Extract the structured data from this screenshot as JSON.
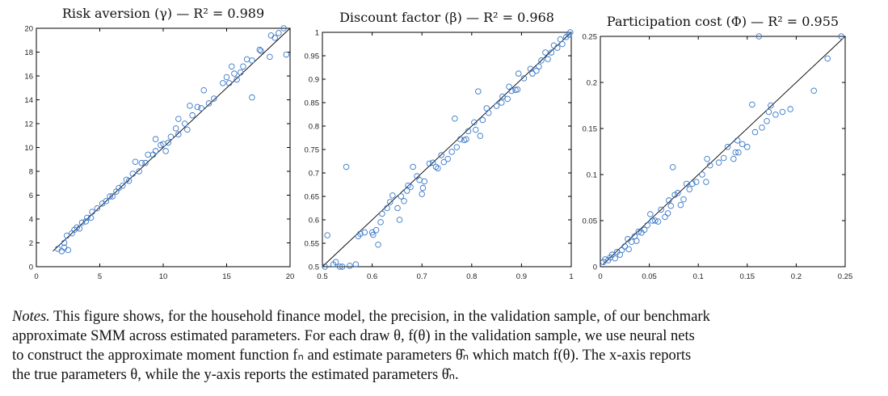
{
  "colors": {
    "marker": "#3a78c8",
    "fit_line": "#000000",
    "frame": "#000000"
  },
  "chart_data": [
    {
      "type": "scatter",
      "title": "Risk aversion (γ) — R² = 0.989",
      "xlim": [
        0,
        20
      ],
      "ylim": [
        0,
        20
      ],
      "xticks": [
        0,
        5,
        10,
        15,
        20
      ],
      "yticks": [
        0,
        2,
        4,
        6,
        8,
        10,
        12,
        14,
        16,
        18,
        20
      ],
      "fit_line": [
        [
          1.3,
          1.3
        ],
        [
          20,
          20
        ]
      ],
      "points": [
        [
          1.7,
          1.5
        ],
        [
          2.0,
          1.3
        ],
        [
          2.2,
          1.6
        ],
        [
          2.2,
          2.0
        ],
        [
          2.5,
          1.4
        ],
        [
          2.4,
          2.6
        ],
        [
          2.8,
          2.8
        ],
        [
          3.0,
          3.1
        ],
        [
          3.2,
          3.3
        ],
        [
          3.4,
          3.2
        ],
        [
          3.6,
          3.7
        ],
        [
          3.9,
          3.8
        ],
        [
          4.0,
          4.1
        ],
        [
          4.3,
          4.1
        ],
        [
          4.4,
          4.6
        ],
        [
          4.8,
          4.9
        ],
        [
          5.2,
          5.3
        ],
        [
          5.5,
          5.5
        ],
        [
          5.8,
          5.9
        ],
        [
          6.0,
          5.9
        ],
        [
          6.3,
          6.3
        ],
        [
          6.5,
          6.6
        ],
        [
          6.8,
          6.8
        ],
        [
          7.1,
          7.3
        ],
        [
          7.3,
          7.2
        ],
        [
          7.6,
          7.8
        ],
        [
          7.8,
          8.8
        ],
        [
          8.1,
          8.0
        ],
        [
          8.3,
          8.7
        ],
        [
          8.6,
          8.7
        ],
        [
          8.8,
          9.4
        ],
        [
          9.2,
          9.4
        ],
        [
          9.4,
          10.7
        ],
        [
          9.4,
          9.7
        ],
        [
          9.8,
          10.2
        ],
        [
          10.0,
          10.3
        ],
        [
          10.2,
          9.7
        ],
        [
          10.4,
          10.4
        ],
        [
          10.6,
          10.9
        ],
        [
          11.0,
          11.6
        ],
        [
          11.2,
          12.4
        ],
        [
          11.2,
          11.1
        ],
        [
          11.7,
          12.0
        ],
        [
          11.9,
          11.5
        ],
        [
          12.1,
          13.5
        ],
        [
          12.3,
          12.7
        ],
        [
          12.7,
          13.4
        ],
        [
          13.0,
          13.3
        ],
        [
          13.2,
          14.8
        ],
        [
          13.6,
          13.7
        ],
        [
          14.0,
          14.1
        ],
        [
          14.7,
          15.4
        ],
        [
          15.0,
          15.9
        ],
        [
          15.2,
          15.4
        ],
        [
          15.4,
          16.8
        ],
        [
          15.6,
          16.2
        ],
        [
          15.8,
          15.7
        ],
        [
          16.1,
          16.3
        ],
        [
          16.3,
          16.8
        ],
        [
          16.6,
          17.4
        ],
        [
          17.0,
          14.2
        ],
        [
          17.0,
          17.3
        ],
        [
          17.6,
          18.2
        ],
        [
          17.7,
          18.1
        ],
        [
          18.4,
          17.6
        ],
        [
          18.5,
          19.4
        ],
        [
          18.8,
          19.2
        ],
        [
          19.1,
          19.6
        ],
        [
          19.5,
          20.0
        ],
        [
          19.7,
          17.8
        ]
      ]
    },
    {
      "type": "scatter",
      "title": "Discount factor (β) — R² = 0.968",
      "xlim": [
        0.5,
        1
      ],
      "ylim": [
        0.5,
        1
      ],
      "xticks": [
        0.5,
        0.6,
        0.7,
        0.8,
        0.9,
        1
      ],
      "yticks": [
        0.5,
        0.55,
        0.6,
        0.65,
        0.7,
        0.75,
        0.8,
        0.85,
        0.9,
        0.95,
        1
      ],
      "fit_line": [
        [
          0.5,
          0.5
        ],
        [
          1,
          1
        ]
      ],
      "points": [
        [
          0.505,
          0.5
        ],
        [
          0.51,
          0.567
        ],
        [
          0.522,
          0.505
        ],
        [
          0.527,
          0.51
        ],
        [
          0.535,
          0.5
        ],
        [
          0.54,
          0.5
        ],
        [
          0.548,
          0.713
        ],
        [
          0.555,
          0.502
        ],
        [
          0.567,
          0.505
        ],
        [
          0.572,
          0.565
        ],
        [
          0.576,
          0.57
        ],
        [
          0.585,
          0.573
        ],
        [
          0.6,
          0.573
        ],
        [
          0.602,
          0.568
        ],
        [
          0.608,
          0.578
        ],
        [
          0.612,
          0.547
        ],
        [
          0.617,
          0.595
        ],
        [
          0.62,
          0.613
        ],
        [
          0.63,
          0.625
        ],
        [
          0.636,
          0.638
        ],
        [
          0.641,
          0.652
        ],
        [
          0.651,
          0.625
        ],
        [
          0.655,
          0.6
        ],
        [
          0.658,
          0.65
        ],
        [
          0.664,
          0.64
        ],
        [
          0.67,
          0.662
        ],
        [
          0.672,
          0.673
        ],
        [
          0.677,
          0.67
        ],
        [
          0.682,
          0.713
        ],
        [
          0.69,
          0.693
        ],
        [
          0.695,
          0.685
        ],
        [
          0.7,
          0.655
        ],
        [
          0.702,
          0.668
        ],
        [
          0.705,
          0.682
        ],
        [
          0.715,
          0.72
        ],
        [
          0.722,
          0.722
        ],
        [
          0.728,
          0.713
        ],
        [
          0.732,
          0.71
        ],
        [
          0.739,
          0.738
        ],
        [
          0.744,
          0.723
        ],
        [
          0.752,
          0.73
        ],
        [
          0.76,
          0.745
        ],
        [
          0.766,
          0.816
        ],
        [
          0.77,
          0.755
        ],
        [
          0.777,
          0.772
        ],
        [
          0.785,
          0.77
        ],
        [
          0.789,
          0.772
        ],
        [
          0.793,
          0.789
        ],
        [
          0.805,
          0.808
        ],
        [
          0.808,
          0.792
        ],
        [
          0.813,
          0.874
        ],
        [
          0.817,
          0.779
        ],
        [
          0.822,
          0.813
        ],
        [
          0.83,
          0.838
        ],
        [
          0.834,
          0.828
        ],
        [
          0.85,
          0.843
        ],
        [
          0.86,
          0.85
        ],
        [
          0.862,
          0.863
        ],
        [
          0.872,
          0.858
        ],
        [
          0.875,
          0.884
        ],
        [
          0.88,
          0.875
        ],
        [
          0.888,
          0.877
        ],
        [
          0.892,
          0.878
        ],
        [
          0.894,
          0.912
        ],
        [
          0.905,
          0.902
        ],
        [
          0.918,
          0.922
        ],
        [
          0.922,
          0.912
        ],
        [
          0.93,
          0.918
        ],
        [
          0.935,
          0.927
        ],
        [
          0.94,
          0.94
        ],
        [
          0.948,
          0.957
        ],
        [
          0.953,
          0.943
        ],
        [
          0.96,
          0.957
        ],
        [
          0.965,
          0.972
        ],
        [
          0.972,
          0.967
        ],
        [
          0.978,
          0.985
        ],
        [
          0.982,
          0.975
        ],
        [
          0.99,
          0.99
        ],
        [
          0.995,
          0.995
        ],
        [
          0.998,
          1.0
        ]
      ]
    },
    {
      "type": "scatter",
      "title": "Participation cost (Φ) — R² = 0.955",
      "xlim": [
        0,
        0.25
      ],
      "ylim": [
        0,
        0.25
      ],
      "xticks": [
        0,
        0.05,
        0.1,
        0.15,
        0.2,
        0.25
      ],
      "yticks": [
        0,
        0.05,
        0.1,
        0.15,
        0.2,
        0.25
      ],
      "fit_line": [
        [
          0.003,
          0.003
        ],
        [
          0.25,
          0.25
        ]
      ],
      "points": [
        [
          0.003,
          0.005
        ],
        [
          0.005,
          0.008
        ],
        [
          0.008,
          0.007
        ],
        [
          0.01,
          0.01
        ],
        [
          0.012,
          0.013
        ],
        [
          0.015,
          0.009
        ],
        [
          0.017,
          0.016
        ],
        [
          0.02,
          0.013
        ],
        [
          0.022,
          0.018
        ],
        [
          0.025,
          0.022
        ],
        [
          0.028,
          0.03
        ],
        [
          0.029,
          0.019
        ],
        [
          0.032,
          0.027
        ],
        [
          0.035,
          0.033
        ],
        [
          0.037,
          0.028
        ],
        [
          0.039,
          0.038
        ],
        [
          0.042,
          0.037
        ],
        [
          0.045,
          0.04
        ],
        [
          0.048,
          0.045
        ],
        [
          0.051,
          0.057
        ],
        [
          0.053,
          0.05
        ],
        [
          0.056,
          0.05
        ],
        [
          0.059,
          0.049
        ],
        [
          0.062,
          0.062
        ],
        [
          0.066,
          0.054
        ],
        [
          0.069,
          0.058
        ],
        [
          0.07,
          0.072
        ],
        [
          0.072,
          0.066
        ],
        [
          0.074,
          0.108
        ],
        [
          0.076,
          0.078
        ],
        [
          0.079,
          0.08
        ],
        [
          0.082,
          0.067
        ],
        [
          0.085,
          0.073
        ],
        [
          0.088,
          0.09
        ],
        [
          0.091,
          0.084
        ],
        [
          0.094,
          0.09
        ],
        [
          0.098,
          0.092
        ],
        [
          0.104,
          0.1
        ],
        [
          0.108,
          0.092
        ],
        [
          0.109,
          0.117
        ],
        [
          0.112,
          0.11
        ],
        [
          0.121,
          0.113
        ],
        [
          0.126,
          0.118
        ],
        [
          0.13,
          0.13
        ],
        [
          0.136,
          0.117
        ],
        [
          0.138,
          0.124
        ],
        [
          0.14,
          0.137
        ],
        [
          0.141,
          0.124
        ],
        [
          0.145,
          0.133
        ],
        [
          0.15,
          0.13
        ],
        [
          0.155,
          0.176
        ],
        [
          0.158,
          0.146
        ],
        [
          0.162,
          0.25
        ],
        [
          0.165,
          0.151
        ],
        [
          0.17,
          0.158
        ],
        [
          0.172,
          0.168
        ],
        [
          0.174,
          0.175
        ],
        [
          0.179,
          0.165
        ],
        [
          0.186,
          0.168
        ],
        [
          0.194,
          0.171
        ],
        [
          0.218,
          0.191
        ],
        [
          0.232,
          0.226
        ],
        [
          0.246,
          0.25
        ]
      ]
    }
  ],
  "notes": {
    "label": "Notes.",
    "lines": [
      " This figure shows, for the household finance model, the precision, in the validation sample, of our benchmark",
      "approximate SMM across estimated parameters.  For each draw θ, f(θ) in the validation sample, we use neural nets",
      "to construct the approximate moment function fₙ and estimate parameters θ̂ₙ which match f(θ). The x-axis reports",
      "the true parameters θ, while the y-axis reports the estimated parameters θ̂ₙ."
    ]
  }
}
